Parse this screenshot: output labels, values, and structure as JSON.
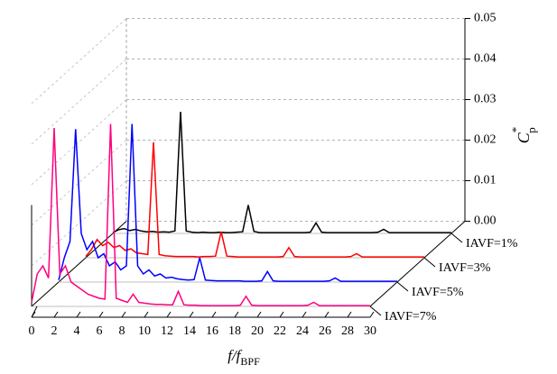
{
  "chart_data": {
    "type": "waterfall",
    "xlabel": "f/f",
    "xlabel_sub": "BPF",
    "ylabel": "C",
    "ylabel_sub": "p",
    "ylabel_sup": "*",
    "xlim": [
      0,
      30
    ],
    "xticks": [
      0,
      2,
      4,
      6,
      8,
      10,
      12,
      14,
      16,
      18,
      20,
      22,
      24,
      26,
      28,
      30
    ],
    "ylim": [
      0,
      0.05
    ],
    "yticks": [
      {
        "value": 0,
        "label": "0.00"
      },
      {
        "value": 0.01,
        "label": "0.01"
      },
      {
        "value": 0.02,
        "label": "0.02"
      },
      {
        "value": 0.03,
        "label": "0.03"
      },
      {
        "value": 0.04,
        "label": "0.04"
      },
      {
        "value": 0.05,
        "label": "0.05"
      }
    ],
    "grid": true,
    "x": [
      0,
      0.5,
      1,
      1.5,
      2,
      2.5,
      3,
      3.5,
      4,
      4.5,
      5,
      5.5,
      6,
      6.5,
      7,
      7.5,
      8,
      8.5,
      9,
      9.5,
      10,
      10.5,
      11,
      11.5,
      12,
      12.5,
      13,
      13.5,
      14,
      14.5,
      15,
      15.5,
      16,
      16.5,
      17,
      17.5,
      18,
      18.5,
      19,
      19.5,
      20,
      20.5,
      21,
      21.5,
      22,
      22.5,
      23,
      23.5,
      24,
      24.5,
      25,
      25.5,
      26,
      26.5,
      27,
      27.5,
      28,
      28.5,
      29,
      29.5,
      30
    ],
    "series": [
      {
        "name": "IAVF=1%",
        "color": "#000000",
        "values": [
          0.0002,
          0.0009,
          0.0012,
          0.0007,
          0.001,
          0.0006,
          0.0004,
          0.0005,
          0.0003,
          0.0004,
          0.0003,
          0.0006,
          0.03,
          0.0006,
          0.0003,
          0.0002,
          0.0003,
          0.0002,
          0.0002,
          0.0003,
          0.0002,
          0.0002,
          0.0003,
          0.0004,
          0.007,
          0.0005,
          0.0002,
          0.0002,
          0.0002,
          0.0002,
          0.0002,
          0.0002,
          0.0002,
          0.0002,
          0.0002,
          0.0003,
          0.0026,
          0.0003,
          0.0002,
          0.0002,
          0.0002,
          0.0002,
          0.0002,
          0.0002,
          0.0002,
          0.0002,
          0.0002,
          0.0003,
          0.001,
          0.0002,
          0.0002,
          0.0002,
          0.0002,
          0.0002,
          0.0002,
          0.0002,
          0.0002,
          0.0002,
          0.0002,
          0.0002,
          0.0002
        ]
      },
      {
        "name": "IAVF=3%",
        "color": "#ff0000",
        "values": [
          0.0003,
          0.002,
          0.0045,
          0.003,
          0.0038,
          0.0025,
          0.003,
          0.0018,
          0.0022,
          0.0012,
          0.001,
          0.0008,
          0.0285,
          0.0008,
          0.0005,
          0.0004,
          0.0003,
          0.0003,
          0.0003,
          0.0003,
          0.0002,
          0.0003,
          0.0003,
          0.0004,
          0.0064,
          0.0004,
          0.0003,
          0.0002,
          0.0002,
          0.0002,
          0.0002,
          0.0002,
          0.0002,
          0.0002,
          0.0002,
          0.0003,
          0.0025,
          0.0003,
          0.0002,
          0.0002,
          0.0002,
          0.0002,
          0.0002,
          0.0002,
          0.0002,
          0.0002,
          0.0002,
          0.0003,
          0.001,
          0.0002,
          0.0002,
          0.0002,
          0.0002,
          0.0002,
          0.0002,
          0.0002,
          0.0002,
          0.0002,
          0.0002,
          0.0002,
          0.0002
        ]
      },
      {
        "name": "IAVF=5%",
        "color": "#0000ff",
        "values": [
          0.0005,
          0.006,
          0.01,
          0.0377,
          0.012,
          0.008,
          0.01,
          0.006,
          0.007,
          0.004,
          0.005,
          0.003,
          0.004,
          0.039,
          0.004,
          0.002,
          0.003,
          0.0015,
          0.002,
          0.001,
          0.0012,
          0.0008,
          0.0006,
          0.0005,
          0.0006,
          0.006,
          0.0005,
          0.0004,
          0.0003,
          0.0003,
          0.0003,
          0.0003,
          0.0003,
          0.0002,
          0.0002,
          0.0002,
          0.0003,
          0.0026,
          0.0003,
          0.0002,
          0.0002,
          0.0002,
          0.0002,
          0.0002,
          0.0002,
          0.0002,
          0.0002,
          0.0002,
          0.0003,
          0.001,
          0.0002,
          0.0002,
          0.0002,
          0.0002,
          0.0002,
          0.0002,
          0.0002,
          0.0002,
          0.0002,
          0.0002,
          0.0002
        ]
      },
      {
        "name": "IAVF=7%",
        "color": "#ff0080",
        "values": [
          0.001,
          0.008,
          0.01,
          0.007,
          0.044,
          0.008,
          0.01,
          0.006,
          0.005,
          0.004,
          0.003,
          0.0025,
          0.002,
          0.0018,
          0.045,
          0.002,
          0.0015,
          0.001,
          0.003,
          0.001,
          0.0008,
          0.0006,
          0.0005,
          0.0005,
          0.0004,
          0.0004,
          0.0037,
          0.0004,
          0.0003,
          0.0003,
          0.0002,
          0.0002,
          0.0002,
          0.0002,
          0.0002,
          0.0002,
          0.0002,
          0.0003,
          0.0025,
          0.0003,
          0.0002,
          0.0002,
          0.0002,
          0.0002,
          0.0002,
          0.0002,
          0.0002,
          0.0002,
          0.0002,
          0.0003,
          0.001,
          0.0002,
          0.0002,
          0.0002,
          0.0002,
          0.0002,
          0.0002,
          0.0002,
          0.0002,
          0.0002,
          0.0002
        ]
      }
    ]
  }
}
